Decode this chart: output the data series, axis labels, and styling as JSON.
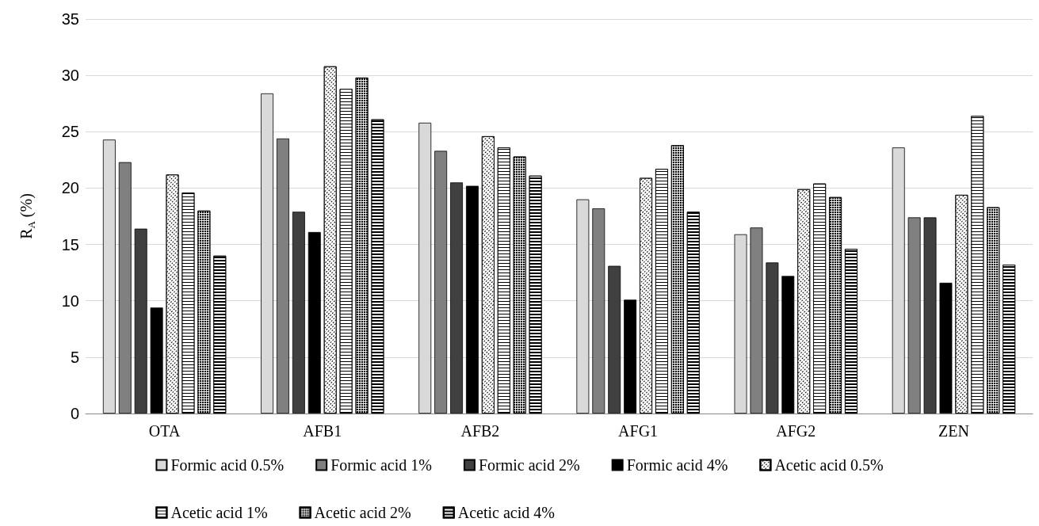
{
  "chart_data": {
    "type": "bar",
    "ylabel": "R$_{A}$ (%)",
    "categories": [
      "OTA",
      "AFB1",
      "AFB2",
      "AFG1",
      "AFG2",
      "ZEN"
    ],
    "ylim": [
      0,
      35
    ],
    "yticks": [
      0,
      5,
      10,
      15,
      20,
      25,
      30,
      35
    ],
    "grid": "y",
    "legend": "bottom",
    "series": [
      {
        "name": "Formic acid 0.5%",
        "color": "#d9d9d9",
        "values": [
          24.3,
          28.4,
          25.8,
          19.0,
          15.9,
          23.6
        ]
      },
      {
        "name": "Formic acid 1%",
        "color": "#808080",
        "values": [
          22.3,
          24.4,
          23.3,
          18.2,
          16.5,
          17.4
        ]
      },
      {
        "name": "Formic acid 2%",
        "color": "#404040",
        "values": [
          16.4,
          17.9,
          20.5,
          13.1,
          13.4,
          17.4
        ]
      },
      {
        "name": "Formic acid 4%",
        "color": "#000000",
        "values": [
          9.4,
          16.1,
          20.2,
          10.1,
          12.2,
          11.6
        ]
      },
      {
        "name": "Acetic acid 0.5%",
        "color": "#ffffff",
        "values": [
          21.2,
          30.8,
          24.6,
          20.9,
          19.9,
          19.4
        ]
      },
      {
        "name": "Acetic acid 1%",
        "color": "#ffffff",
        "values": [
          19.6,
          28.8,
          23.6,
          21.7,
          20.4,
          26.4
        ]
      },
      {
        "name": "Acetic acid 2%",
        "color": "#ffffff",
        "values": [
          18.0,
          29.8,
          22.8,
          23.8,
          19.2,
          18.3
        ]
      },
      {
        "name": "Acetic acid 4%",
        "color": "#ffffff",
        "values": [
          14.0,
          26.1,
          21.1,
          17.9,
          14.6,
          13.2
        ]
      }
    ]
  }
}
